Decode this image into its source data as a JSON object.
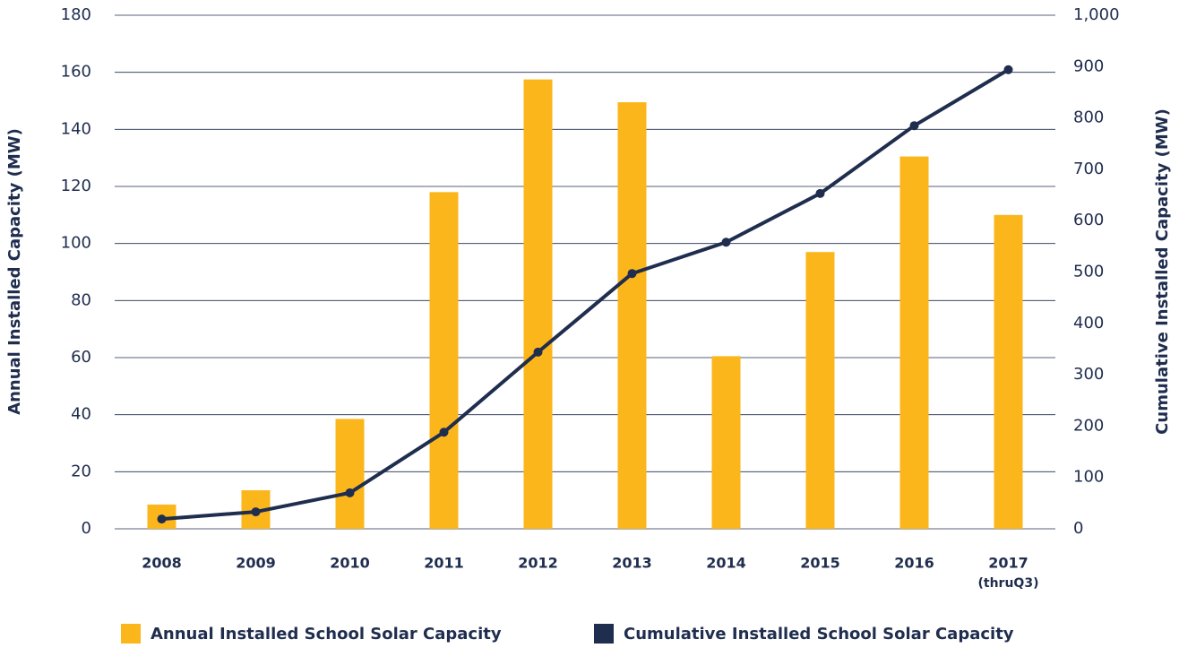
{
  "chart_data": {
    "type": "bar_line",
    "ylabel": "Annual Installed Capacity (MW)",
    "y2label": "Cumulative Installed Capacity (MW)",
    "categories": [
      "2008",
      "2009",
      "2010",
      "2011",
      "2012",
      "2013",
      "2014",
      "2015",
      "2016",
      "2017"
    ],
    "annotation": "(thruQ3)",
    "series": [
      {
        "name": "Annual Installed School Solar Capacity",
        "color": "#fbb61b",
        "kind": "bar",
        "axis": "y",
        "values": [
          8.5,
          13.5,
          38.5,
          118,
          157.5,
          149.5,
          60.5,
          97,
          130.5,
          110
        ]
      },
      {
        "name": "Cumulative Installed School Solar Capacity",
        "color": "#1f2d4e",
        "kind": "line",
        "axis": "y2",
        "values": [
          19,
          33,
          70,
          188,
          344,
          497,
          558,
          653,
          785,
          894
        ]
      }
    ],
    "ylim": [
      0,
      180
    ],
    "yticks": [
      0,
      20,
      40,
      60,
      80,
      100,
      120,
      140,
      160,
      180
    ],
    "y2lim": [
      0,
      1000
    ],
    "y2ticks": [
      0,
      100,
      200,
      300,
      400,
      500,
      600,
      700,
      800,
      900,
      {
        "value": 1000,
        "label": "1,000"
      }
    ],
    "grid": true,
    "legend": "bottom"
  }
}
